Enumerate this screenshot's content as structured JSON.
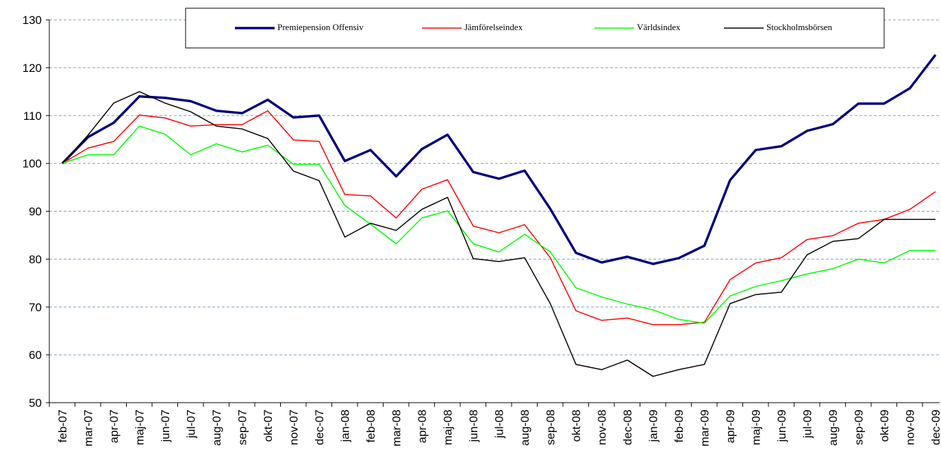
{
  "chart_data": {
    "type": "line",
    "categories": [
      "feb-07",
      "mar-07",
      "apr-07",
      "maj-07",
      "jun-07",
      "jul-07",
      "aug-07",
      "sep-07",
      "okt-07",
      "nov-07",
      "dec-07",
      "jan-08",
      "feb-08",
      "mar-08",
      "apr-08",
      "maj-08",
      "jun-08",
      "jul-08",
      "aug-08",
      "sep-08",
      "okt-08",
      "nov-08",
      "dec-08",
      "jan-09",
      "feb-09",
      "mar-09",
      "apr-09",
      "maj-09",
      "jun-09",
      "jul-09",
      "aug-09",
      "sep-09",
      "okt-09",
      "nov-09",
      "dec-09"
    ],
    "series": [
      {
        "name": "Premiepension Offensiv",
        "color": "#000080",
        "values": [
          100,
          105.5,
          108.5,
          114,
          113.7,
          113,
          111,
          110.5,
          113.3,
          109.6,
          110,
          100.5,
          102.8,
          97.3,
          103,
          106,
          98.2,
          96.8,
          98.5,
          90.5,
          81.3,
          79.3,
          80.5,
          79,
          80.2,
          82.8,
          96.5,
          102.8,
          103.6,
          106.8,
          108.2,
          112.5,
          112.5,
          115.7,
          122.7
        ]
      },
      {
        "name": "Jämförelseindex",
        "color": "#ff0000",
        "values": [
          100,
          103.2,
          104.6,
          110.1,
          109.5,
          107.8,
          108.1,
          108.1,
          111,
          104.9,
          104.6,
          93.5,
          93.2,
          88.6,
          94.6,
          96.6,
          86.9,
          85.5,
          87.2,
          80.3,
          69.2,
          67.2,
          67.7,
          66.3,
          66.3,
          66.8,
          75.7,
          79.2,
          80.3,
          84.1,
          84.9,
          87.5,
          88.3,
          90.4,
          94.1
        ]
      },
      {
        "name": "Världsindex",
        "color": "#00ff00",
        "values": [
          100,
          101.8,
          101.8,
          107.8,
          106.1,
          101.8,
          104.1,
          102.4,
          103.8,
          99.8,
          99.8,
          91.2,
          87.3,
          83.2,
          88.6,
          90.1,
          83.2,
          81.5,
          85.2,
          81.5,
          74,
          72.1,
          70.6,
          69.4,
          67.4,
          66.6,
          72.3,
          74.3,
          75.5,
          76.9,
          78,
          80,
          79.2,
          81.8,
          81.8
        ]
      },
      {
        "name": "Stockholmsbörsen",
        "color": "#000000",
        "values": [
          100,
          105.9,
          112.6,
          115,
          112.6,
          110.8,
          107.8,
          107.2,
          105.2,
          98.4,
          96.4,
          84.6,
          87.5,
          86,
          90.4,
          92.9,
          80.1,
          79.5,
          80.3,
          70.7,
          58,
          56.9,
          58.9,
          55.5,
          56.9,
          58,
          70.7,
          72.6,
          73.1,
          80.9,
          83.7,
          84.3,
          88.3,
          88.3,
          88.3
        ]
      }
    ],
    "ylim": [
      50,
      130
    ],
    "yticks": [
      50,
      60,
      70,
      80,
      90,
      100,
      110,
      120,
      130
    ],
    "grid": true,
    "legend": "top"
  }
}
